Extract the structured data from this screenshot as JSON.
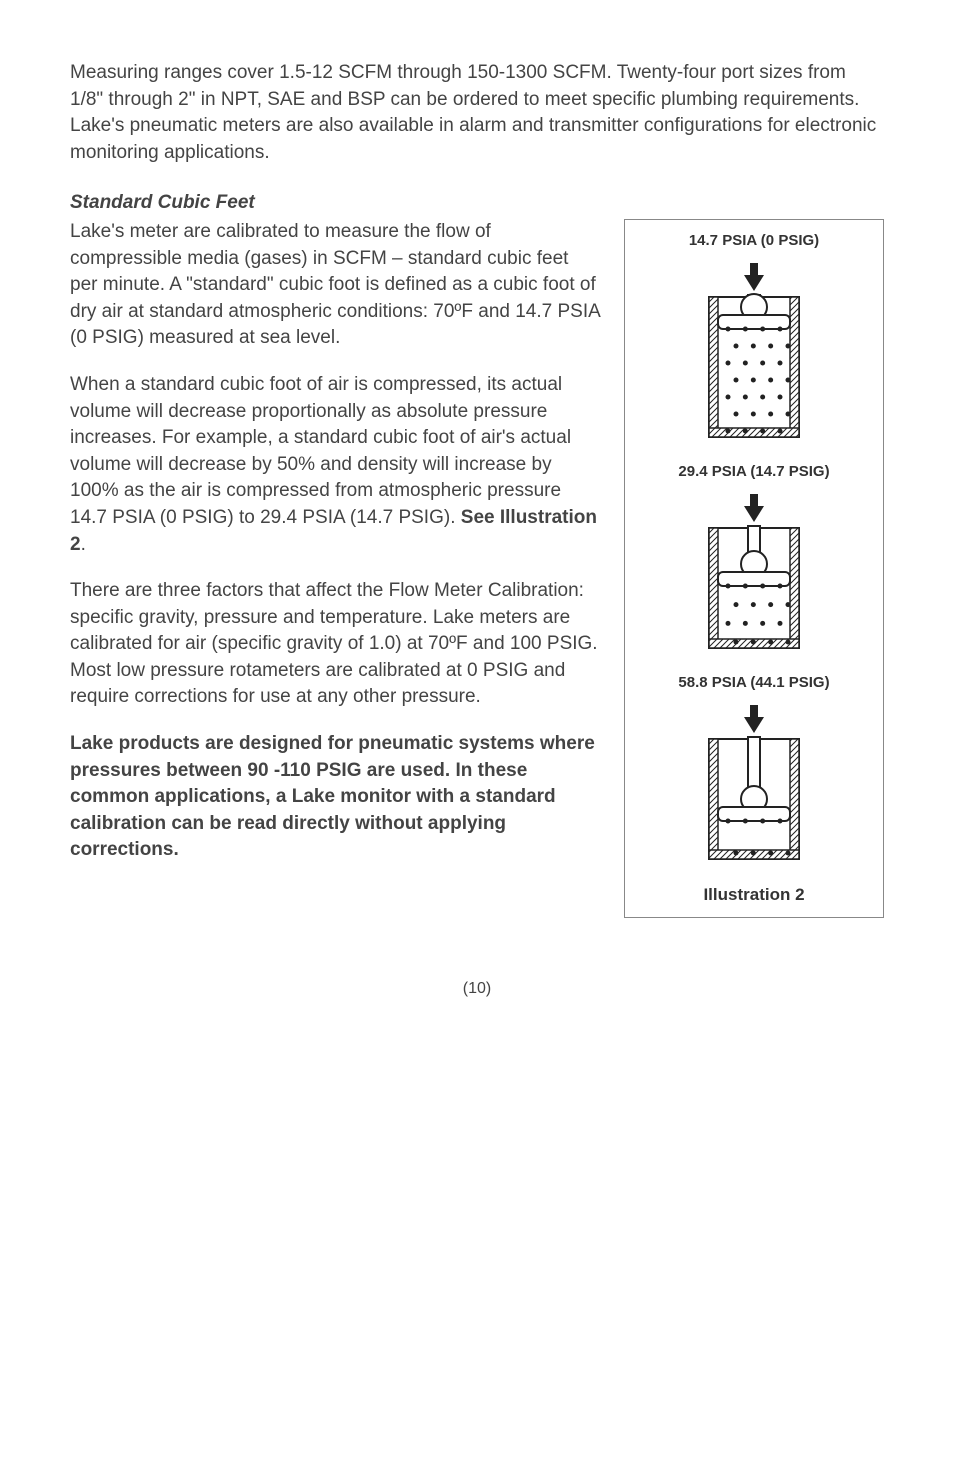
{
  "intro": "Measuring ranges cover 1.5-12 SCFM through 150-1300 SCFM. Twenty-four port sizes from 1/8\" through 2\" in NPT, SAE and BSP can be ordered to meet specific plumbing requirements. Lake's pneumatic meters are also available in alarm and transmitter configurations for electronic monitoring applications.",
  "heading": "Standard Cubic Feet",
  "para1": "Lake's meter are calibrated to measure the flow of compressible media (gases) in SCFM – standard cubic feet per minute. A \"standard\" cubic foot is defined as a cubic foot of dry air at standard atmospheric conditions: 70ºF and 14.7 PSIA (0 PSIG) measured at sea level.",
  "para2_part1": "When a standard cubic foot of air is compressed, its actual volume will decrease proportionally as absolute pressure increases. For example, a standard cubic foot of air's actual volume will decrease by 50% and density will increase by 100% as the air is compressed from atmospheric pressure 14.7 PSIA (0 PSIG) to 29.4 PSIA (14.7 PSIG). ",
  "para2_bold": "See Illustration 2",
  "para2_end": ".",
  "para3": "There are three factors that affect the Flow Meter Calibration: specific gravity, pressure and temperature. Lake meters are calibrated for air (specific gravity of 1.0) at 70ºF and 100 PSIG. Most low pressure rotameters are calibrated at 0 PSIG and require corrections for use at any other pressure.",
  "para4": "Lake products are designed for pneumatic systems where pressures between 90 -110 PSIG are used. In these common applications, a Lake monitor with a standard calibration can be read directly without applying corrections.",
  "figure": {
    "stages": [
      {
        "label": "14.7 PSIA (0 PSIG)",
        "cylinderH": 140,
        "pistonY": 12,
        "dotsTop": 62
      },
      {
        "label": "29.4 PSIA (14.7 PSIG)",
        "cylinderH": 120,
        "pistonY": 38,
        "dotsTop": 78
      },
      {
        "label": "58.8 PSIA (44.1 PSIG)",
        "cylinderH": 120,
        "pistonY": 62,
        "dotsTop": 98
      }
    ],
    "caption": "Illustration 2",
    "colors": {
      "stroke": "#222",
      "fill": "#fff",
      "hatch": "#222"
    }
  },
  "pageNumber": "(10)"
}
